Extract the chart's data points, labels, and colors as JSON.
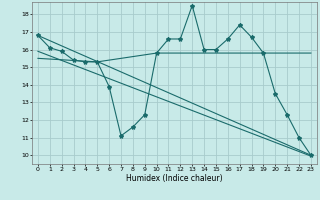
{
  "xlabel": "Humidex (Indice chaleur)",
  "background_color": "#c8eae8",
  "grid_color": "#a8cccc",
  "line_color": "#1a6b6b",
  "xlim": [
    -0.5,
    23.5
  ],
  "ylim": [
    9.5,
    18.7
  ],
  "xticks": [
    0,
    1,
    2,
    3,
    4,
    5,
    6,
    7,
    8,
    9,
    10,
    11,
    12,
    13,
    14,
    15,
    16,
    17,
    18,
    19,
    20,
    21,
    22,
    23
  ],
  "yticks": [
    10,
    11,
    12,
    13,
    14,
    15,
    16,
    17,
    18
  ],
  "series": [
    [
      0,
      16.8
    ],
    [
      1,
      16.1
    ],
    [
      2,
      15.9
    ],
    [
      3,
      15.4
    ],
    [
      4,
      15.3
    ],
    [
      5,
      15.3
    ],
    [
      6,
      13.9
    ],
    [
      7,
      11.1
    ],
    [
      8,
      11.6
    ],
    [
      9,
      12.3
    ],
    [
      10,
      15.8
    ],
    [
      11,
      16.6
    ],
    [
      12,
      16.6
    ],
    [
      13,
      18.5
    ],
    [
      14,
      16.0
    ],
    [
      15,
      16.0
    ],
    [
      16,
      16.6
    ],
    [
      17,
      17.4
    ],
    [
      18,
      16.7
    ],
    [
      19,
      15.8
    ],
    [
      20,
      13.5
    ],
    [
      21,
      12.3
    ],
    [
      22,
      11.0
    ],
    [
      23,
      10.0
    ]
  ],
  "line2": [
    [
      0,
      16.8
    ],
    [
      23,
      10.0
    ]
  ],
  "line3": [
    [
      0,
      15.9
    ],
    [
      23,
      9.95
    ]
  ],
  "line4": [
    [
      0,
      15.5
    ],
    [
      5,
      15.3
    ],
    [
      10,
      15.8
    ],
    [
      19,
      15.8
    ],
    [
      23,
      15.8
    ]
  ]
}
